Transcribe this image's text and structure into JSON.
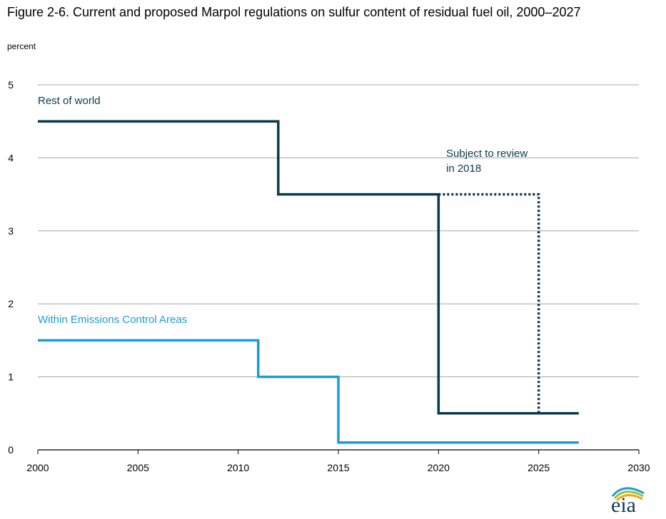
{
  "chart_data": {
    "type": "line",
    "title": "Figure 2-6. Current and proposed Marpol regulations on sulfur content of residual fuel oil, 2000–2027",
    "ylabel": "percent",
    "xlabel": "",
    "xlim": [
      2000,
      2030
    ],
    "ylim": [
      0,
      5
    ],
    "xticks": [
      2000,
      2005,
      2010,
      2015,
      2020,
      2025,
      2030
    ],
    "yticks": [
      0,
      1,
      2,
      3,
      4,
      5
    ],
    "grid": true,
    "series": [
      {
        "name": "Rest of world",
        "color": "#0b3a4e",
        "style": "solid",
        "x": [
          2000,
          2012,
          2012,
          2020,
          2020,
          2027
        ],
        "y": [
          4.5,
          4.5,
          3.5,
          3.5,
          0.5,
          0.5
        ]
      },
      {
        "name": "",
        "color": "#0b3a4e",
        "style": "dotted",
        "x": [
          2020,
          2025,
          2025
        ],
        "y": [
          3.5,
          3.5,
          0.5
        ]
      },
      {
        "name": "Within Emissions Control Areas",
        "color": "#1d9bd6",
        "style": "solid",
        "x": [
          2000,
          2011,
          2011,
          2015,
          2015,
          2027
        ],
        "y": [
          1.5,
          1.5,
          1.0,
          1.0,
          0.1,
          0.1
        ]
      }
    ],
    "annotations": [
      {
        "text": "Rest of world",
        "color": "#0b3a4e"
      },
      {
        "text": "Within Emissions Control Areas",
        "color": "#1d9bd6"
      },
      {
        "lines": [
          "Subject to review",
          "in 2018"
        ],
        "color": "#0b3a4e"
      }
    ]
  },
  "logo": {
    "text": "eia",
    "colors": [
      "#1d9bd6",
      "#8dc63f",
      "#f6a31b",
      "#0b3a4e"
    ]
  }
}
